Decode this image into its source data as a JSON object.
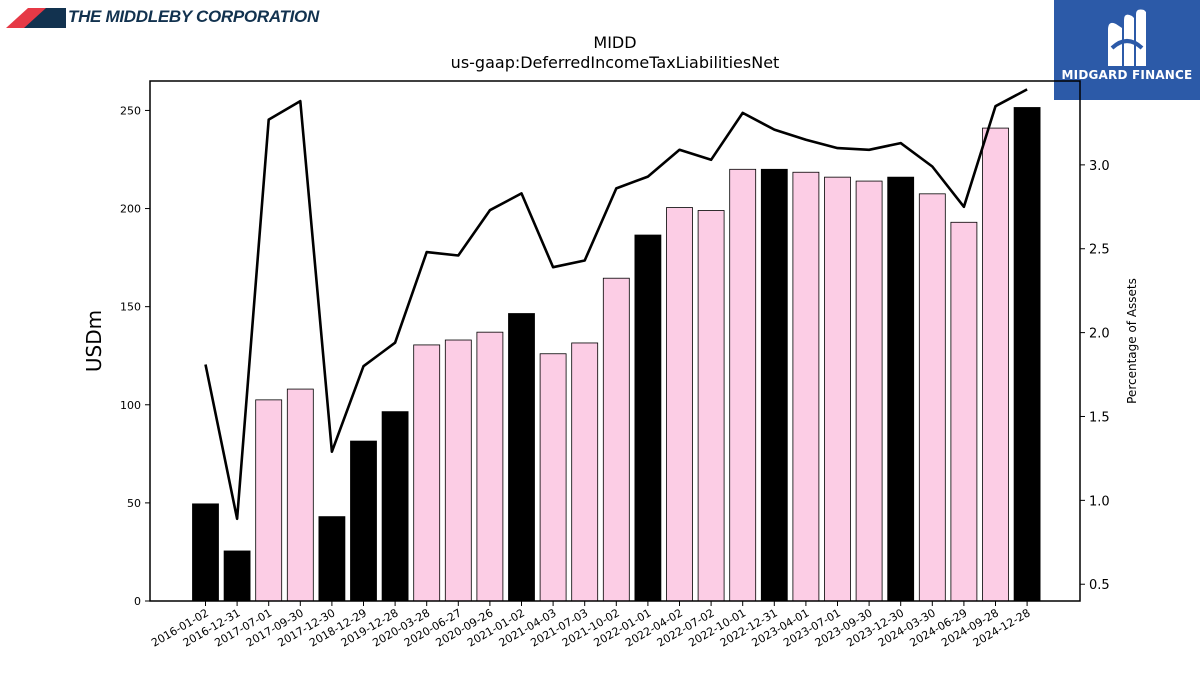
{
  "header": {
    "company_name": "THE MIDDLEBY CORPORATION",
    "brand_name": "MIDGARD FINANCE",
    "company_logo_icon": "middleby-stripes-logo",
    "brand_logo_icon": "midgard-m-logo",
    "brand_color": "#2c5aa8"
  },
  "chart_data": {
    "type": "bar",
    "title": "MIDD",
    "subtitle": "us-gaap:DeferredIncomeTaxLiabilitiesNet",
    "ylabel": "USDm",
    "ylabel_right": "Percentage of Assets",
    "ylim": [
      0,
      265
    ],
    "ylim_right": [
      0.4,
      3.5
    ],
    "yticks": [
      0,
      50,
      100,
      150,
      200,
      250
    ],
    "yticks_right": [
      0.5,
      1.0,
      1.5,
      2.0,
      2.5,
      3.0
    ],
    "grid": false,
    "categories": [
      "2016-01-02",
      "2016-12-31",
      "2017-07-01",
      "2017-09-30",
      "2017-12-30",
      "2018-12-29",
      "2019-12-28",
      "2020-03-28",
      "2020-06-27",
      "2020-09-26",
      "2021-01-02",
      "2021-04-03",
      "2021-07-03",
      "2021-10-02",
      "2022-01-01",
      "2022-04-02",
      "2022-07-02",
      "2022-10-01",
      "2022-12-31",
      "2023-04-01",
      "2023-07-01",
      "2023-09-30",
      "2023-12-30",
      "2024-03-30",
      "2024-06-29",
      "2024-09-28",
      "2024-12-28"
    ],
    "series": [
      {
        "type": "bar",
        "axis": "left",
        "values": [
          49.5,
          25.5,
          102.5,
          108,
          43,
          81.5,
          96.5,
          130.5,
          133,
          137,
          146.5,
          126,
          131.5,
          164.5,
          186.5,
          200.5,
          199,
          220,
          220,
          218.5,
          216,
          214,
          216,
          207.5,
          193,
          241,
          251.5
        ],
        "colors": [
          "#000000",
          "#000000",
          "#fccde5",
          "#fccde5",
          "#000000",
          "#000000",
          "#000000",
          "#fccde5",
          "#fccde5",
          "#fccde5",
          "#000000",
          "#fccde5",
          "#fccde5",
          "#fccde5",
          "#000000",
          "#fccde5",
          "#fccde5",
          "#fccde5",
          "#000000",
          "#fccde5",
          "#fccde5",
          "#fccde5",
          "#000000",
          "#fccde5",
          "#fccde5",
          "#fccde5",
          "#000000"
        ]
      },
      {
        "type": "line",
        "axis": "right",
        "color": "#000000",
        "values": [
          1.81,
          0.89,
          3.27,
          3.38,
          1.29,
          1.8,
          1.94,
          2.48,
          2.46,
          2.73,
          2.83,
          2.39,
          2.43,
          2.86,
          2.93,
          3.09,
          3.03,
          3.31,
          3.21,
          3.15,
          3.1,
          3.09,
          3.13,
          2.99,
          2.75,
          3.35,
          3.45
        ]
      }
    ]
  }
}
